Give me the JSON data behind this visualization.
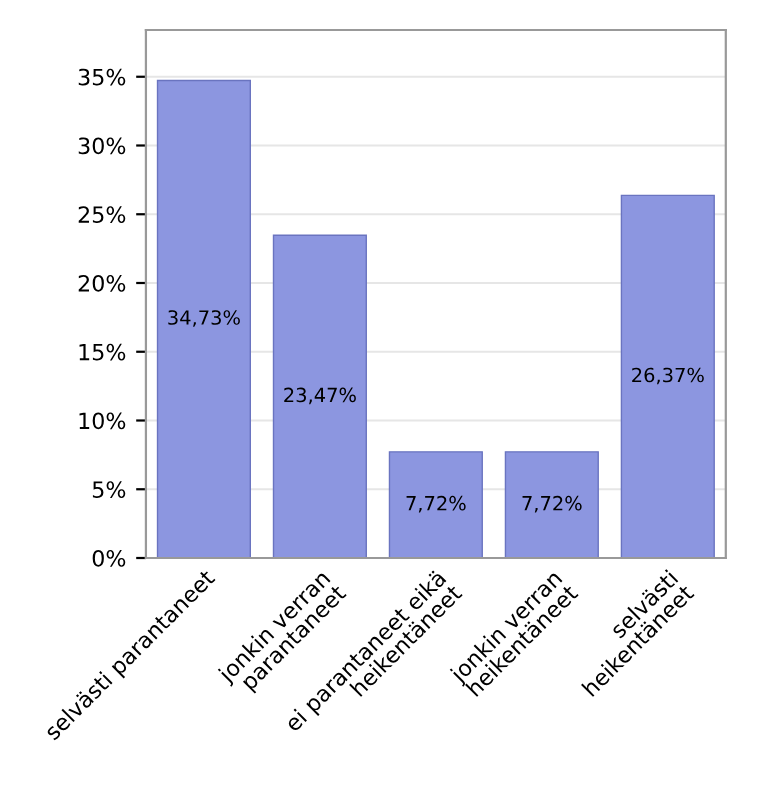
{
  "chart_data": {
    "type": "bar",
    "categories": [
      "selvästi parantaneet",
      "jonkin verran\nparantaneet",
      "ei parantaneet eikä\nheikentäneet",
      "jonkin verran\nheikentäneet",
      "selvästi\nheikentäneet"
    ],
    "values": [
      34.73,
      23.47,
      7.72,
      7.72,
      26.37
    ],
    "value_labels": [
      "34,73%",
      "23,47%",
      "7,72%",
      "7,72%",
      "26,37%"
    ],
    "color": "#8c96e0",
    "ylim": [
      0,
      38.4
    ],
    "yticks": [
      {
        "value": 0,
        "label": "0%"
      },
      {
        "value": 5,
        "label": "5%"
      },
      {
        "value": 10,
        "label": "10%"
      },
      {
        "value": 15,
        "label": "15%"
      },
      {
        "value": 20,
        "label": "20%"
      },
      {
        "value": 25,
        "label": "25%"
      },
      {
        "value": 30,
        "label": "30%"
      },
      {
        "value": 35,
        "label": "35%"
      }
    ],
    "grid": "y"
  }
}
